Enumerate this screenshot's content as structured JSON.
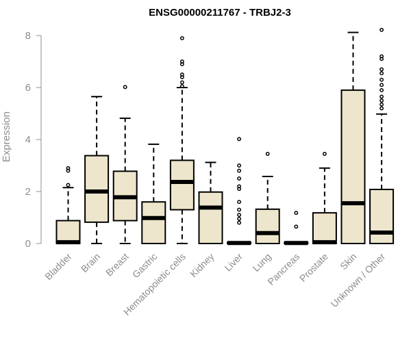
{
  "chart_data": {
    "type": "box",
    "title": "ENSG00000211767 - TRBJ2-3",
    "xlabel": "",
    "ylabel": "Expression",
    "ylim": [
      0,
      8.3
    ],
    "yticks": [
      0,
      2,
      4,
      6,
      8
    ],
    "grid": false,
    "box_color": "#ede6cc",
    "categories": [
      "Bladder",
      "Brain",
      "Breast",
      "Gastric",
      "Hematopoietic cells",
      "Kidney",
      "Liver",
      "Lung",
      "Pancreas",
      "Prostate",
      "Skin",
      "Unknown / Other"
    ],
    "boxes": [
      {
        "whisker_low": 0,
        "q1": 0,
        "median": 0.05,
        "q3": 0.88,
        "whisker_high": 2.15,
        "outliers": [
          2.25,
          2.8,
          2.9
        ]
      },
      {
        "whisker_low": 0,
        "q1": 0.82,
        "median": 2.0,
        "q3": 3.38,
        "whisker_high": 5.65,
        "outliers": []
      },
      {
        "whisker_low": 0,
        "q1": 0.88,
        "median": 1.78,
        "q3": 2.78,
        "whisker_high": 4.82,
        "outliers": [
          6.02
        ]
      },
      {
        "whisker_low": 0,
        "q1": 0,
        "median": 0.98,
        "q3": 1.6,
        "whisker_high": 3.82,
        "outliers": []
      },
      {
        "whisker_low": 0,
        "q1": 1.3,
        "median": 2.37,
        "q3": 3.2,
        "whisker_high": 6.0,
        "outliers": [
          6.05,
          6.2,
          6.4,
          6.5,
          6.9,
          7.0,
          7.9
        ]
      },
      {
        "whisker_low": 0,
        "q1": 0,
        "median": 1.38,
        "q3": 1.98,
        "whisker_high": 3.12,
        "outliers": []
      },
      {
        "whisker_low": 0,
        "q1": 0,
        "median": 0.02,
        "q3": 0.05,
        "whisker_high": 0.05,
        "outliers": [
          0.8,
          0.95,
          1.1,
          1.3,
          1.6,
          2.1,
          2.2,
          2.5,
          2.8,
          3.0,
          4.02
        ]
      },
      {
        "whisker_low": 0,
        "q1": 0,
        "median": 0.4,
        "q3": 1.32,
        "whisker_high": 2.58,
        "outliers": [
          3.45
        ]
      },
      {
        "whisker_low": 0,
        "q1": 0,
        "median": 0.02,
        "q3": 0.05,
        "whisker_high": 0.05,
        "outliers": [
          0.65,
          1.18
        ]
      },
      {
        "whisker_low": 0,
        "q1": 0,
        "median": 0.05,
        "q3": 1.18,
        "whisker_high": 2.9,
        "outliers": [
          3.45
        ]
      },
      {
        "whisker_low": 0,
        "q1": 0,
        "median": 1.55,
        "q3": 5.9,
        "whisker_high": 8.12,
        "outliers": []
      },
      {
        "whisker_low": 0,
        "q1": 0,
        "median": 0.42,
        "q3": 2.08,
        "whisker_high": 4.98,
        "outliers": [
          5.2,
          5.35,
          5.5,
          5.65,
          5.9,
          6.1,
          6.3,
          6.55,
          6.7,
          7.1,
          7.2,
          8.22
        ]
      }
    ]
  }
}
